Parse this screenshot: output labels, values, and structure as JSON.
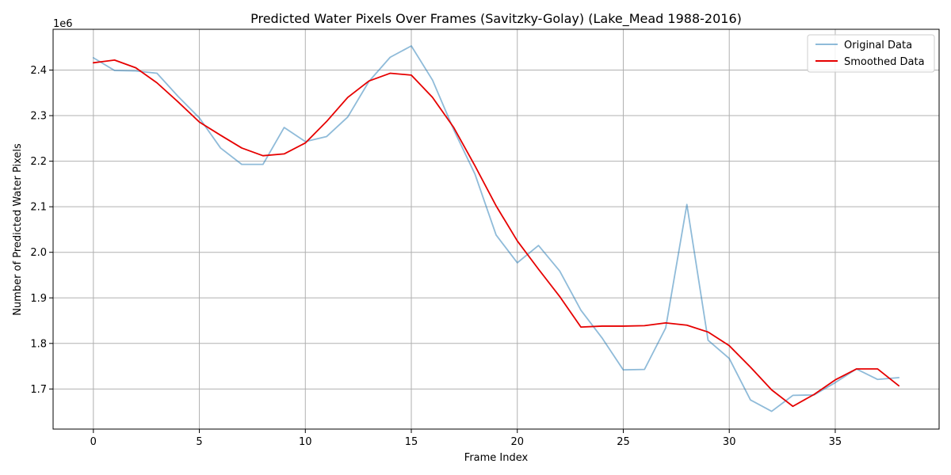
{
  "chart_data": {
    "type": "line",
    "title": "Predicted Water Pixels Over Frames (Savitzky-Golay) (Lake_Mead 1988-2016)",
    "xlabel": "Frame Index",
    "ylabel": "Number of Predicted Water Pixels",
    "y_offset_label": "1e6",
    "xlim": [
      -1.9,
      39.9
    ],
    "ylim": [
      1.612,
      2.4895
    ],
    "x_ticks": [
      0,
      5,
      10,
      15,
      20,
      25,
      30,
      35
    ],
    "x_tick_labels": [
      "0",
      "5",
      "10",
      "15",
      "20",
      "25",
      "30",
      "35"
    ],
    "y_ticks": [
      1.7,
      1.8,
      1.9,
      2.0,
      2.1,
      2.2,
      2.3,
      2.4
    ],
    "y_tick_labels": [
      "1.7",
      "1.8",
      "1.9",
      "2.0",
      "2.1",
      "2.2",
      "2.3",
      "2.4"
    ],
    "grid": true,
    "legend_position": "top-right",
    "x": [
      0,
      1,
      2,
      3,
      4,
      5,
      6,
      7,
      8,
      9,
      10,
      11,
      12,
      13,
      14,
      15,
      16,
      17,
      18,
      19,
      20,
      21,
      22,
      23,
      24,
      25,
      26,
      27,
      28,
      29,
      30,
      31,
      32,
      33,
      34,
      35,
      36,
      37,
      38
    ],
    "series": [
      {
        "name": "Original Data",
        "color": "#1f77b4",
        "opacity": 0.5,
        "values": [
          2.427,
          2.399,
          2.398,
          2.393,
          2.342,
          2.295,
          2.229,
          2.193,
          2.193,
          2.274,
          2.243,
          2.254,
          2.297,
          2.375,
          2.428,
          2.453,
          2.378,
          2.269,
          2.172,
          2.038,
          1.977,
          2.015,
          1.959,
          1.873,
          1.812,
          1.742,
          1.743,
          1.834,
          2.105,
          1.807,
          1.767,
          1.676,
          1.651,
          1.686,
          1.687,
          1.714,
          1.744,
          1.721,
          1.725
        ]
      },
      {
        "name": "Smoothed Data",
        "color": "#e60000",
        "opacity": 1.0,
        "values": [
          2.416,
          2.422,
          2.405,
          2.372,
          2.33,
          2.286,
          2.257,
          2.229,
          2.212,
          2.216,
          2.24,
          2.287,
          2.34,
          2.376,
          2.393,
          2.389,
          2.34,
          2.274,
          2.19,
          2.102,
          2.025,
          1.963,
          1.903,
          1.836,
          1.838,
          1.838,
          1.839,
          1.845,
          1.84,
          1.825,
          1.795,
          1.748,
          1.698,
          1.662,
          1.688,
          1.72,
          1.744,
          1.744,
          1.707
        ]
      }
    ]
  }
}
